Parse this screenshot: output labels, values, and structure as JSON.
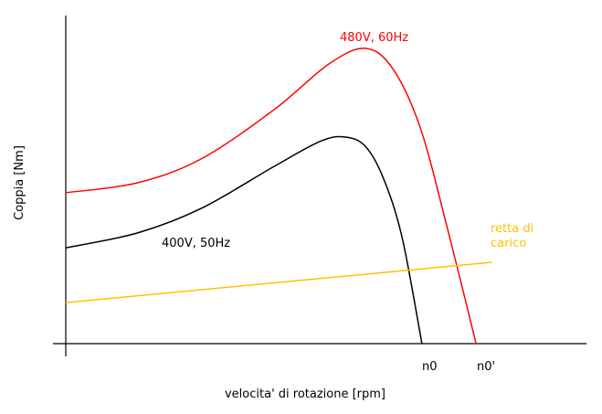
{
  "chart_data": {
    "type": "line",
    "title": "",
    "xlabel": "velocita' di rotazione [rpm]",
    "ylabel": "Coppia [Nm]",
    "xlim": [
      0,
      100
    ],
    "ylim": [
      0,
      100
    ],
    "grid": false,
    "x_ticks": [
      {
        "label": "n0",
        "x": 68.4
      },
      {
        "label": "n0'",
        "x": 78.8
      }
    ],
    "series": [
      {
        "name": "480V, 60Hz",
        "color": "#ff0000",
        "x": [
          0,
          13.7,
          26,
          40,
          50.5,
          57.5,
          62.8,
          68.1,
          73.3,
          78.8
        ],
        "y": [
          46,
          49,
          56.3,
          71.3,
          85.2,
          90,
          83.8,
          65.7,
          35.1,
          0
        ]
      },
      {
        "name": "400V, 50Hz",
        "color": "#000000",
        "x": [
          0,
          13.7,
          26,
          40,
          48.8,
          53.5,
          57.5,
          61,
          64.6,
          68.4
        ],
        "y": [
          29.2,
          33.7,
          41.2,
          54,
          61.6,
          63,
          60.2,
          50.4,
          32.3,
          0
        ]
      },
      {
        "name": "retta di carico",
        "color": "#ffc000",
        "x": [
          0,
          81.8
        ],
        "y": [
          12.5,
          24.8
        ]
      }
    ],
    "annotations": {
      "red_label": "480V, 60Hz",
      "black_label": "400V, 50Hz",
      "yellow_label_line1": "retta di",
      "yellow_label_line2": "carico"
    }
  }
}
